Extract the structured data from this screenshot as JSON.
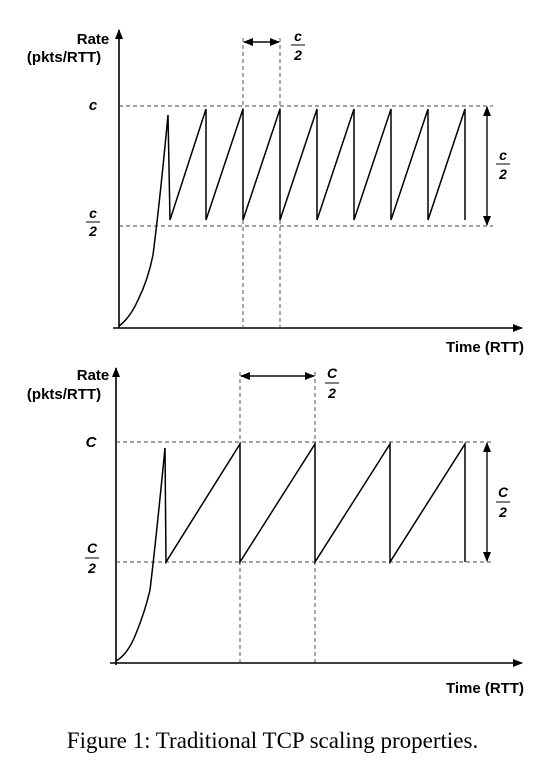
{
  "panels": [
    {
      "y_label_line1": "Rate",
      "y_label_line2": "(pkts/RTT)",
      "c_label": "c",
      "half_num": "c",
      "half_den": "2",
      "x_label": "Time (RTT)",
      "top_num": "c",
      "top_den": "2",
      "right_num": "c",
      "right_den": "2"
    },
    {
      "y_label_line1": "Rate",
      "y_label_line2": "(pkts/RTT)",
      "c_label": "C",
      "half_num": "C",
      "half_den": "2",
      "x_label": "Time (RTT)",
      "top_num": "C",
      "top_den": "2",
      "right_num": "C",
      "right_den": "2"
    }
  ],
  "caption": "Figure 1: Traditional TCP scaling properties."
}
